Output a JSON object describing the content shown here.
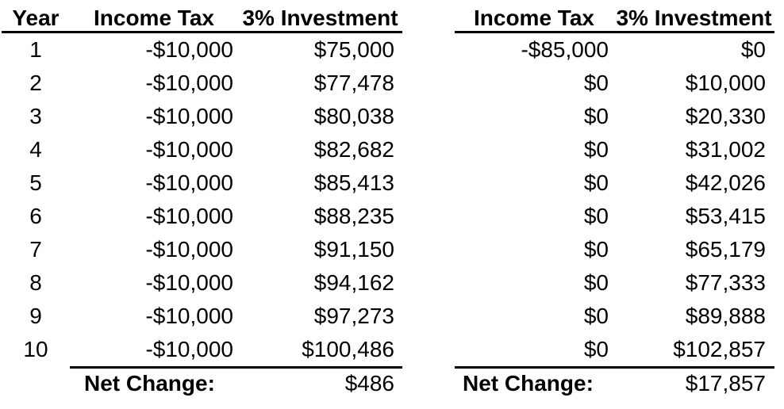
{
  "colors": {
    "text": "#000000",
    "background": "#ffffff",
    "rule": "#000000"
  },
  "left_table": {
    "headers": {
      "year": "Year",
      "income_tax": "Income Tax",
      "investment": "3% Investment"
    },
    "rows": [
      {
        "year": "1",
        "income_tax": "-$10,000",
        "investment": "$75,000"
      },
      {
        "year": "2",
        "income_tax": "-$10,000",
        "investment": "$77,478"
      },
      {
        "year": "3",
        "income_tax": "-$10,000",
        "investment": "$80,038"
      },
      {
        "year": "4",
        "income_tax": "-$10,000",
        "investment": "$82,682"
      },
      {
        "year": "5",
        "income_tax": "-$10,000",
        "investment": "$85,413"
      },
      {
        "year": "6",
        "income_tax": "-$10,000",
        "investment": "$88,235"
      },
      {
        "year": "7",
        "income_tax": "-$10,000",
        "investment": "$91,150"
      },
      {
        "year": "8",
        "income_tax": "-$10,000",
        "investment": "$94,162"
      },
      {
        "year": "9",
        "income_tax": "-$10,000",
        "investment": "$97,273"
      },
      {
        "year": "10",
        "income_tax": "-$10,000",
        "investment": "$100,486"
      }
    ],
    "footer": {
      "label": "Net Change:",
      "value": "$486"
    }
  },
  "right_table": {
    "headers": {
      "income_tax": "Income Tax",
      "investment": "3% Investment"
    },
    "rows": [
      {
        "income_tax": "-$85,000",
        "investment": "$0"
      },
      {
        "income_tax": "$0",
        "investment": "$10,000"
      },
      {
        "income_tax": "$0",
        "investment": "$20,330"
      },
      {
        "income_tax": "$0",
        "investment": "$31,002"
      },
      {
        "income_tax": "$0",
        "investment": "$42,026"
      },
      {
        "income_tax": "$0",
        "investment": "$53,415"
      },
      {
        "income_tax": "$0",
        "investment": "$65,179"
      },
      {
        "income_tax": "$0",
        "investment": "$77,333"
      },
      {
        "income_tax": "$0",
        "investment": "$89,888"
      },
      {
        "income_tax": "$0",
        "investment": "$102,857"
      }
    ],
    "footer": {
      "label": "Net Change:",
      "value": "$17,857"
    }
  },
  "chart_data": [
    {
      "type": "table",
      "columns": [
        "Year",
        "Income Tax",
        "3% Investment"
      ],
      "rows": [
        [
          1,
          -10000,
          75000
        ],
        [
          2,
          -10000,
          77478
        ],
        [
          3,
          -10000,
          80038
        ],
        [
          4,
          -10000,
          82682
        ],
        [
          5,
          -10000,
          85413
        ],
        [
          6,
          -10000,
          88235
        ],
        [
          7,
          -10000,
          91150
        ],
        [
          8,
          -10000,
          94162
        ],
        [
          9,
          -10000,
          97273
        ],
        [
          10,
          -10000,
          100486
        ]
      ],
      "footer": {
        "label": "Net Change:",
        "value": 486
      }
    },
    {
      "type": "table",
      "columns": [
        "Income Tax",
        "3% Investment"
      ],
      "rows": [
        [
          -85000,
          0
        ],
        [
          0,
          10000
        ],
        [
          0,
          20330
        ],
        [
          0,
          31002
        ],
        [
          0,
          42026
        ],
        [
          0,
          53415
        ],
        [
          0,
          65179
        ],
        [
          0,
          77333
        ],
        [
          0,
          89888
        ],
        [
          0,
          102857
        ]
      ],
      "footer": {
        "label": "Net Change:",
        "value": 17857
      }
    }
  ]
}
